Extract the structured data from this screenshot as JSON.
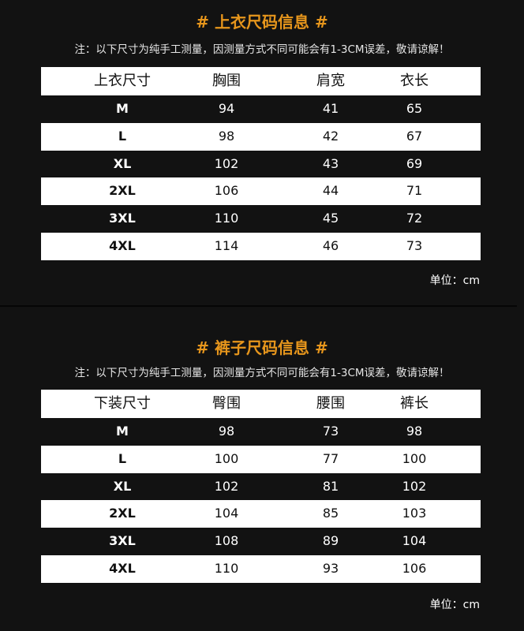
{
  "tops": {
    "title": "# 上衣尺码信息 #",
    "note": "注：以下尺寸为纯手工测量，因测量方式不同可能会有1-3CM误差，敬请谅解！",
    "headers": [
      "上衣尺寸",
      "胸围",
      "肩宽",
      "衣长"
    ],
    "rows": [
      [
        "M",
        "94",
        "41",
        "65"
      ],
      [
        "L",
        "98",
        "42",
        "67"
      ],
      [
        "XL",
        "102",
        "43",
        "69"
      ],
      [
        "2XL",
        "106",
        "44",
        "71"
      ],
      [
        "3XL",
        "110",
        "45",
        "72"
      ],
      [
        "4XL",
        "114",
        "46",
        "73"
      ]
    ],
    "unit": "单位：cm"
  },
  "pants": {
    "title": "# 裤子尺码信息 #",
    "note": "注：以下尺寸为纯手工测量，因测量方式不同可能会有1-3CM误差，敬请谅解！",
    "headers": [
      "下装尺寸",
      "臀围",
      "腰围",
      "裤长"
    ],
    "rows": [
      [
        "M",
        "98",
        "73",
        "98"
      ],
      [
        "L",
        "100",
        "77",
        "100"
      ],
      [
        "XL",
        "102",
        "81",
        "102"
      ],
      [
        "2XL",
        "104",
        "85",
        "103"
      ],
      [
        "3XL",
        "108",
        "89",
        "104"
      ],
      [
        "4XL",
        "110",
        "93",
        "106"
      ]
    ],
    "unit": "单位：cm"
  },
  "colors": {
    "accent": "#e7961c",
    "background": "#121212",
    "row_light": "#ffffff"
  }
}
